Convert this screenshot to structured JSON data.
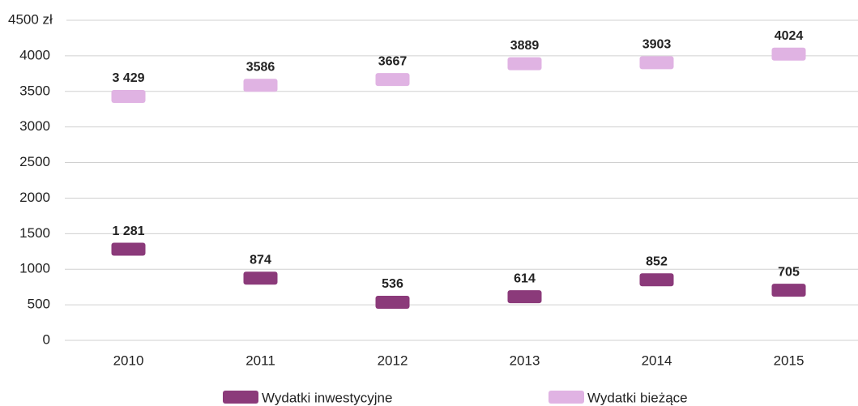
{
  "chart_data": {
    "type": "line",
    "marker": "dash",
    "categories": [
      "2010",
      "2011",
      "2012",
      "2013",
      "2014",
      "2015"
    ],
    "series": [
      {
        "name": "Wydatki inwestycyjne",
        "color": "#8b3a7a",
        "values": [
          1281,
          874,
          536,
          614,
          852,
          705
        ],
        "value_labels": [
          "1 281",
          "874",
          "536",
          "614",
          "852",
          "705"
        ]
      },
      {
        "name": "Wydatki bieżące",
        "color": "#e0b3e3",
        "values": [
          3429,
          3586,
          3667,
          3889,
          3903,
          4024
        ],
        "value_labels": [
          "3 429",
          "3586",
          "3667",
          "3889",
          "3903",
          "4024"
        ]
      }
    ],
    "ylim": [
      0,
      4500
    ],
    "yticks": [
      0,
      500,
      1000,
      1500,
      2000,
      2500,
      3000,
      3500,
      4000,
      {
        "value": 4500,
        "label": "4500 zł"
      }
    ],
    "grid": true,
    "legend": "bottom"
  }
}
